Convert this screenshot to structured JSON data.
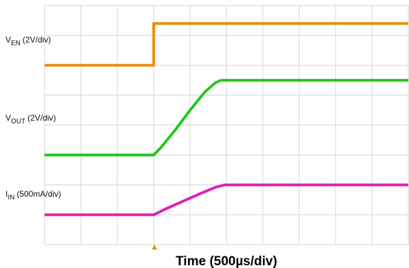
{
  "chart_data": {
    "type": "line",
    "x_label": "Time (500µs/div)",
    "xlim": [
      0,
      10
    ],
    "ylim": [
      0,
      8
    ],
    "xticks": [
      0,
      1,
      2,
      3,
      4,
      5,
      6,
      7,
      8,
      9,
      10
    ],
    "yticks": [
      0,
      1,
      2,
      3,
      4,
      5,
      6,
      7,
      8
    ],
    "grid": true,
    "series": [
      {
        "name": "V",
        "subscript": "EN",
        "scale": "(2V/div)",
        "color": "#e8900a",
        "x": [
          0,
          3,
          3,
          10
        ],
        "y": [
          6.0,
          6.0,
          7.4,
          7.4
        ]
      },
      {
        "name": "V",
        "subscript": "OUT",
        "scale": "(2V/div)",
        "color": "#22c81e",
        "x": [
          0,
          3,
          3.2,
          3.6,
          4.0,
          4.4,
          4.7,
          4.85,
          10
        ],
        "y": [
          3.0,
          3.0,
          3.25,
          3.85,
          4.5,
          5.1,
          5.42,
          5.5,
          5.5
        ]
      },
      {
        "name": "I",
        "subscript": "IN",
        "scale": "(500mA/div)",
        "color": "#e020b4",
        "x": [
          0,
          3,
          3.3,
          3.8,
          4.3,
          4.7,
          4.95,
          10
        ],
        "y": [
          1.0,
          1.0,
          1.18,
          1.45,
          1.72,
          1.92,
          2.0,
          2.0
        ]
      }
    ]
  }
}
